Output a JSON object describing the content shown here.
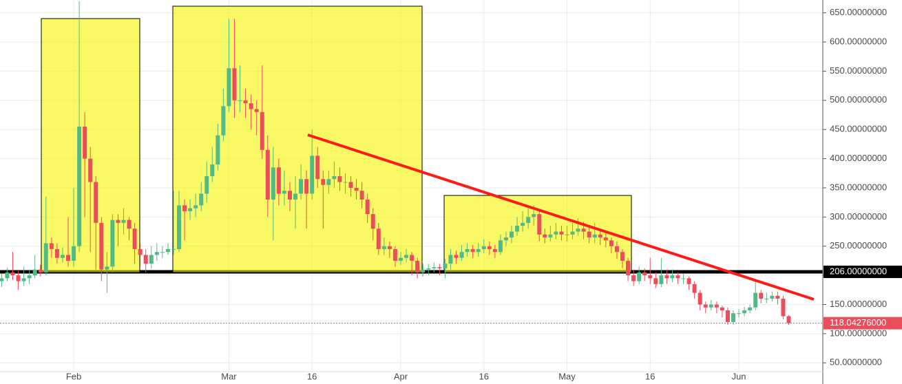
{
  "chart_data": {
    "type": "candlestick",
    "categories": [
      null,
      null,
      null,
      null,
      null,
      null,
      null,
      null,
      null,
      null,
      null,
      null,
      null,
      "Feb",
      null,
      null,
      null,
      null,
      null,
      null,
      null,
      null,
      null,
      null,
      null,
      null,
      null,
      null,
      null,
      null,
      null,
      null,
      null,
      null,
      null,
      null,
      null,
      null,
      null,
      null,
      null,
      "Mar",
      null,
      null,
      null,
      null,
      null,
      null,
      null,
      null,
      null,
      null,
      null,
      null,
      null,
      null,
      "16",
      null,
      null,
      null,
      null,
      null,
      null,
      null,
      null,
      null,
      null,
      null,
      null,
      null,
      null,
      null,
      "Apr",
      null,
      null,
      null,
      null,
      null,
      null,
      null,
      null,
      null,
      null,
      null,
      null,
      null,
      null,
      "16",
      null,
      null,
      null,
      null,
      null,
      null,
      null,
      null,
      null,
      null,
      null,
      null,
      null,
      null,
      "May",
      null,
      null,
      null,
      null,
      null,
      null,
      null,
      null,
      null,
      null,
      null,
      null,
      null,
      null,
      "16",
      null,
      null,
      null,
      null,
      null,
      null,
      null,
      null,
      null,
      null,
      null,
      null,
      null,
      null,
      null,
      "Jun",
      null,
      null,
      null,
      null,
      null,
      null,
      null,
      null,
      null
    ],
    "open": [
      190,
      195,
      205,
      200,
      190,
      195,
      200,
      210,
      205,
      255,
      245,
      230,
      235,
      225,
      250,
      455,
      400,
      360,
      290,
      210,
      215,
      295,
      290,
      295,
      280,
      245,
      235,
      220,
      235,
      240,
      240,
      245,
      245,
      320,
      310,
      315,
      320,
      340,
      370,
      390,
      440,
      490,
      555,
      500,
      500,
      495,
      485,
      480,
      415,
      330,
      385,
      340,
      345,
      330,
      340,
      365,
      340,
      405,
      365,
      355,
      365,
      370,
      360,
      360,
      350,
      345,
      330,
      305,
      280,
      245,
      250,
      245,
      225,
      230,
      235,
      225,
      205,
      210,
      212,
      214,
      212,
      220,
      235,
      230,
      240,
      245,
      240,
      245,
      250,
      245,
      240,
      260,
      265,
      275,
      285,
      290,
      300,
      305,
      270,
      265,
      270,
      275,
      270,
      270,
      275,
      280,
      275,
      265,
      270,
      265,
      260,
      250,
      240,
      225,
      200,
      190,
      205,
      200,
      195,
      185,
      200,
      195,
      200,
      195,
      195,
      185,
      170,
      150,
      145,
      150,
      145,
      140,
      120,
      135,
      135,
      140,
      145,
      170,
      160,
      160,
      165,
      160,
      130
    ],
    "high": [
      203,
      213,
      240,
      208,
      215,
      210,
      235,
      218,
      335,
      265,
      255,
      248,
      300,
      350,
      670,
      480,
      420,
      370,
      300,
      240,
      305,
      305,
      315,
      300,
      290,
      255,
      245,
      250,
      255,
      250,
      255,
      345,
      345,
      330,
      330,
      340,
      360,
      395,
      420,
      460,
      520,
      640,
      640,
      560,
      520,
      510,
      500,
      560,
      440,
      420,
      400,
      380,
      360,
      370,
      390,
      380,
      450,
      420,
      380,
      380,
      395,
      385,
      375,
      370,
      365,
      360,
      340,
      315,
      290,
      265,
      258,
      250,
      240,
      245,
      240,
      230,
      220,
      220,
      222,
      220,
      228,
      245,
      242,
      252,
      255,
      252,
      255,
      262,
      258,
      252,
      270,
      275,
      285,
      300,
      310,
      315,
      320,
      312,
      280,
      285,
      290,
      285,
      285,
      290,
      298,
      292,
      285,
      290,
      280,
      272,
      265,
      258,
      245,
      230,
      210,
      215,
      212,
      230,
      205,
      230,
      210,
      210,
      205,
      202,
      198,
      190,
      175,
      155,
      158,
      155,
      148,
      145,
      140,
      142,
      146,
      150,
      190,
      175,
      170,
      172,
      172,
      165,
      132
    ],
    "low": [
      180,
      190,
      192,
      175,
      182,
      185,
      195,
      198,
      200,
      230,
      220,
      222,
      215,
      215,
      240,
      300,
      240,
      210,
      190,
      170,
      205,
      250,
      270,
      260,
      220,
      215,
      205,
      212,
      225,
      230,
      235,
      235,
      240,
      260,
      295,
      300,
      310,
      325,
      360,
      380,
      430,
      480,
      470,
      480,
      470,
      450,
      440,
      400,
      300,
      260,
      320,
      320,
      310,
      280,
      330,
      280,
      330,
      350,
      280,
      340,
      350,
      345,
      340,
      335,
      330,
      315,
      290,
      260,
      235,
      235,
      230,
      215,
      218,
      222,
      200,
      195,
      198,
      200,
      205,
      200,
      195,
      210,
      220,
      225,
      232,
      230,
      232,
      238,
      235,
      230,
      235,
      250,
      255,
      268,
      275,
      280,
      285,
      258,
      255,
      258,
      262,
      260,
      258,
      262,
      268,
      262,
      255,
      255,
      252,
      248,
      238,
      228,
      212,
      190,
      182,
      185,
      190,
      185,
      178,
      180,
      185,
      188,
      185,
      185,
      175,
      160,
      140,
      135,
      140,
      135,
      128,
      115,
      115,
      128,
      130,
      135,
      140,
      152,
      152,
      155,
      150,
      125,
      115
    ],
    "close": [
      195,
      205,
      200,
      190,
      195,
      200,
      210,
      205,
      255,
      245,
      230,
      235,
      225,
      250,
      455,
      400,
      360,
      290,
      210,
      215,
      295,
      290,
      295,
      280,
      245,
      235,
      220,
      235,
      240,
      240,
      245,
      245,
      320,
      310,
      315,
      320,
      340,
      370,
      390,
      440,
      490,
      555,
      500,
      500,
      495,
      485,
      480,
      415,
      330,
      385,
      340,
      345,
      330,
      340,
      365,
      340,
      405,
      365,
      355,
      365,
      370,
      360,
      360,
      350,
      345,
      330,
      305,
      280,
      245,
      250,
      245,
      225,
      230,
      235,
      225,
      205,
      210,
      212,
      214,
      212,
      220,
      235,
      230,
      240,
      245,
      240,
      245,
      250,
      245,
      240,
      260,
      265,
      275,
      285,
      290,
      300,
      305,
      270,
      265,
      270,
      275,
      270,
      270,
      275,
      280,
      275,
      265,
      270,
      265,
      260,
      250,
      240,
      225,
      200,
      190,
      205,
      200,
      195,
      185,
      200,
      195,
      200,
      195,
      195,
      185,
      170,
      150,
      145,
      150,
      145,
      140,
      120,
      135,
      135,
      140,
      145,
      170,
      160,
      160,
      165,
      160,
      130,
      118.04276
    ],
    "up_color": "#53b987",
    "down_color": "#eb4d5c",
    "ylim": [
      35,
      672
    ],
    "yticks": [
      {
        "value": 50,
        "label": "50.00000000"
      },
      {
        "value": 100,
        "label": "100.00000000"
      },
      {
        "value": 150,
        "label": "150.00000000"
      },
      {
        "value": 200,
        "label": "200.00000000"
      },
      {
        "value": 250,
        "label": "250.00000000"
      },
      {
        "value": 300,
        "label": "300.00000000"
      },
      {
        "value": 350,
        "label": "350.00000000"
      },
      {
        "value": 400,
        "label": "400.00000000"
      },
      {
        "value": 450,
        "label": "450.00000000"
      },
      {
        "value": 500,
        "label": "500.00000000"
      },
      {
        "value": 550,
        "label": "550.00000000"
      },
      {
        "value": 600,
        "label": "600.00000000"
      },
      {
        "value": 650,
        "label": "650.00000000"
      }
    ],
    "grid": true,
    "hlines": [
      {
        "value": 206,
        "label": "206.00000000",
        "color": "#000000"
      },
      {
        "value": 118.04276,
        "label": "118.04276000",
        "color": "#eb4d5c"
      }
    ]
  }
}
